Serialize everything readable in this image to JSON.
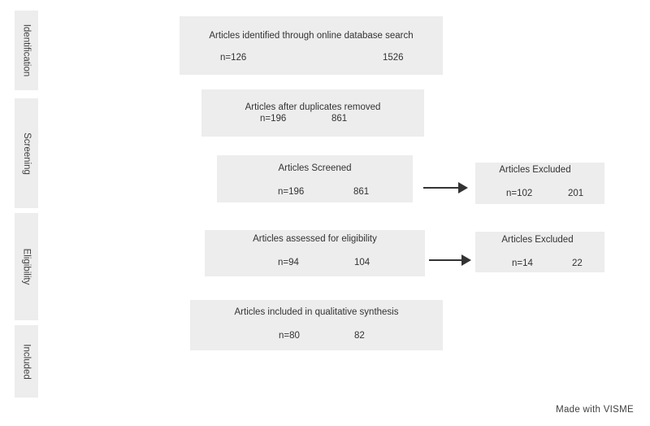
{
  "stages": {
    "identification": "Identification",
    "screening": "Screening",
    "eligibility": "Eligibility",
    "included": "Included"
  },
  "boxes": {
    "identified": {
      "title": "Articles identified through online database search",
      "n": "n=126",
      "count": "1526"
    },
    "duplicates_removed": {
      "title": "Articles after duplicates removed",
      "n": "n=196",
      "count": "861"
    },
    "screened": {
      "title": "Articles Screened",
      "n": "n=196",
      "count": "861"
    },
    "excluded_screening": {
      "title": "Articles Excluded",
      "n": "n=102",
      "count": "201"
    },
    "eligibility": {
      "title": "Articles assessed for eligibility",
      "n": "n=94",
      "count": "104"
    },
    "excluded_eligibility": {
      "title": "Articles Excluded",
      "n": "n=14",
      "count": "22"
    },
    "included": {
      "title": "Articles included in qualitative synthesis",
      "n": "n=80",
      "count": "82"
    }
  },
  "footer": "Made with VISME"
}
